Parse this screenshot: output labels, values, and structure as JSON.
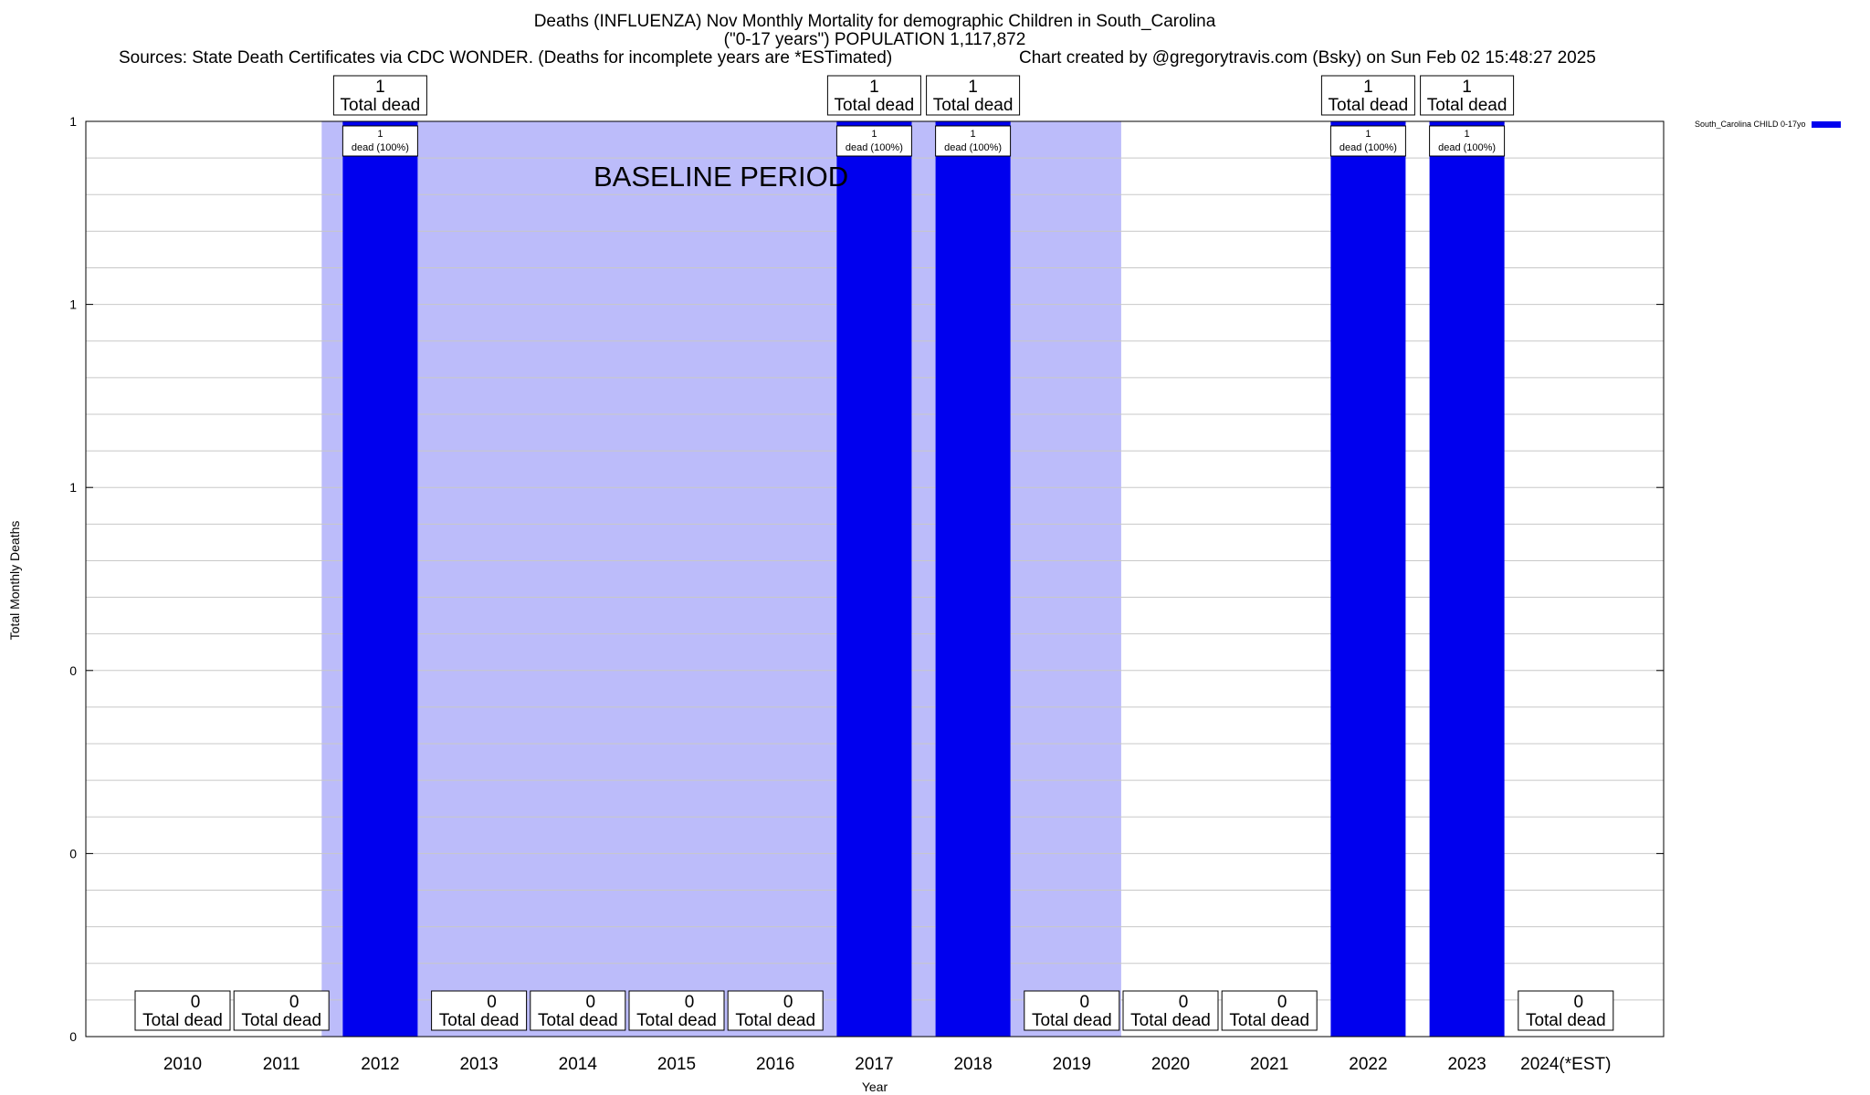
{
  "header": {
    "title_line1": "Deaths (INFLUENZA) Nov Monthly Mortality for demographic Children in South_Carolina",
    "title_line2": "(\"0-17 years\") POPULATION 1,117,872",
    "sources": "Sources: State Death Certificates via CDC WONDER. (Deaths for incomplete years are *ESTimated)",
    "credit": "Chart created by @gregorytravis.com (Bsky) on Sun Feb 02 15:48:27 2025"
  },
  "legend": {
    "label": "South_Carolina CHILD 0-17yo",
    "color": "#0000ee"
  },
  "chart_data": {
    "type": "bar",
    "title": "Deaths (INFLUENZA) Nov Monthly Mortality for demographic Children in South_Carolina",
    "xlabel": "Year",
    "ylabel": "Total Monthly Deaths",
    "ylim": [
      0,
      1
    ],
    "y_ticks": [
      0,
      0.2,
      0.4,
      0.6,
      0.8,
      1
    ],
    "y_tick_labels": [
      "0",
      "0",
      "0",
      "1",
      "1",
      "1"
    ],
    "grid": true,
    "legend_position": "top-right",
    "categories": [
      "2010",
      "2011",
      "2012",
      "2013",
      "2014",
      "2015",
      "2016",
      "2017",
      "2018",
      "2019",
      "2020",
      "2021",
      "2022",
      "2023",
      "2024(*EST)"
    ],
    "series": [
      {
        "name": "South_Carolina CHILD 0-17yo",
        "color": "#0000ee",
        "values": [
          0,
          0,
          1,
          0,
          0,
          0,
          0,
          1,
          1,
          0,
          0,
          0,
          1,
          1,
          0
        ]
      }
    ],
    "total_label": "Total dead",
    "bar_label": "dead (100%)",
    "baseline": {
      "label": "BASELINE PERIOD",
      "from": "2012",
      "to": "2019",
      "color": "#bcbcfa"
    }
  }
}
